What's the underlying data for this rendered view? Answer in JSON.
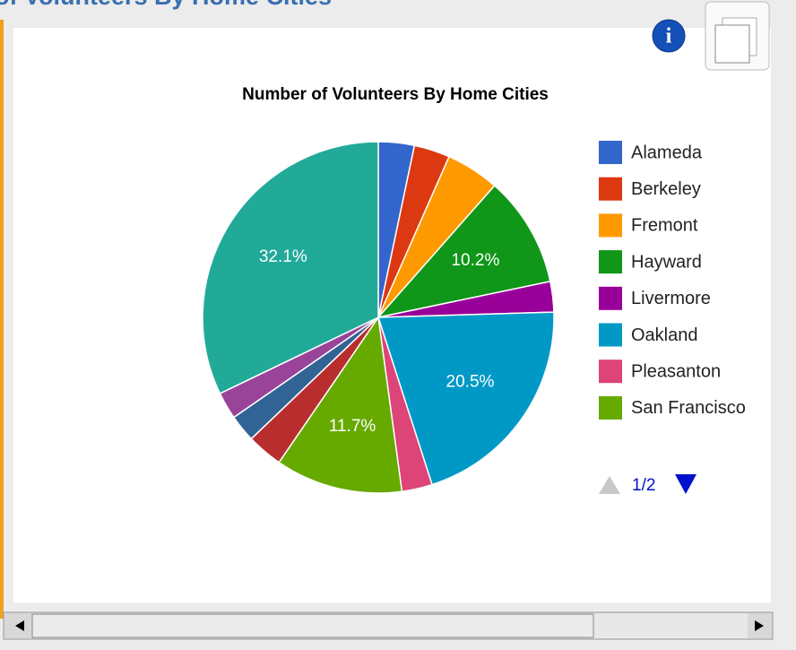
{
  "header": {
    "title": "of Volunteers By Home Cities"
  },
  "chart_data": {
    "type": "pie",
    "title": "Number of Volunteers By Home Cities",
    "categories": [
      "Alameda",
      "Berkeley",
      "Fremont",
      "Hayward",
      "Livermore",
      "Oakland",
      "Pleasanton",
      "San Francisco",
      null,
      null,
      null,
      null
    ],
    "values": [
      3.3,
      3.3,
      4.9,
      10.2,
      2.8,
      20.5,
      2.8,
      11.7,
      3.3,
      2.5,
      2.5,
      32.1
    ],
    "value_labels": [
      null,
      null,
      null,
      "10.2%",
      null,
      "20.5%",
      null,
      "11.7%",
      null,
      null,
      null,
      "32.1%"
    ],
    "colors": [
      "#3366cc",
      "#dc3912",
      "#ff9900",
      "#109618",
      "#990099",
      "#0099c6",
      "#dd4477",
      "#66aa00",
      "#b82e2e",
      "#316395",
      "#994499",
      "#22aa99"
    ],
    "legend": "right"
  },
  "pager": {
    "label": "1/2"
  }
}
